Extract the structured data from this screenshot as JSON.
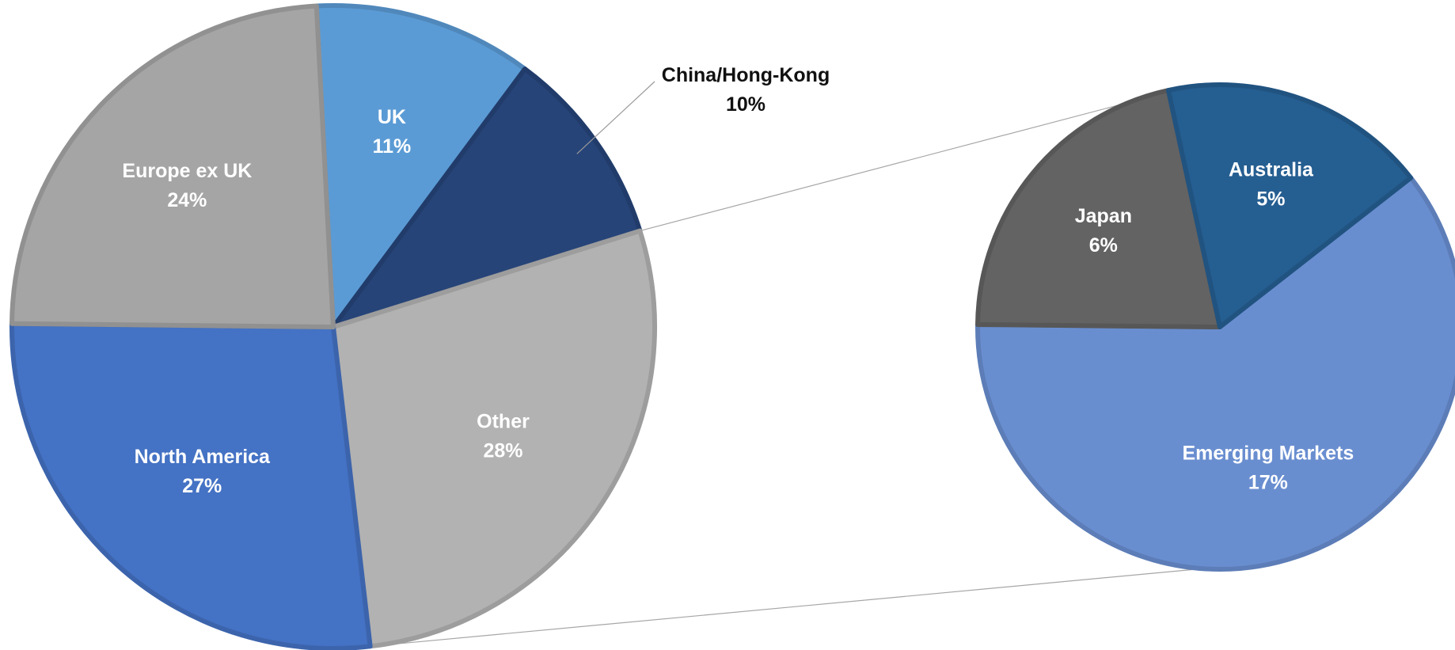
{
  "chart_data": {
    "type": "pie",
    "subtype": "pie-of-pie",
    "title": "",
    "main_pie": {
      "slices": [
        {
          "label": "UK",
          "value": 11,
          "value_label": "11%",
          "color": "#5B9BD5",
          "label_inside": true
        },
        {
          "label": "China/Hong-Kong",
          "value": 10,
          "value_label": "10%",
          "color": "#264478",
          "label_inside": false
        },
        {
          "label": "Other",
          "value": 28,
          "value_label": "28%",
          "color": "#B2B2B2",
          "label_inside": true
        },
        {
          "label": "North America",
          "value": 27,
          "value_label": "27%",
          "color": "#4472C4",
          "label_inside": true
        },
        {
          "label": "Europe ex UK",
          "value": 24,
          "value_label": "24%",
          "color": "#A5A5A5",
          "label_inside": true
        }
      ]
    },
    "secondary_pie": {
      "breakout_of": "Other",
      "slices": [
        {
          "label": "Emerging Markets",
          "value": 17,
          "value_label": "17%",
          "color": "#698ED0",
          "label_inside": true
        },
        {
          "label": "Japan",
          "value": 6,
          "value_label": "6%",
          "color": "#636363",
          "label_inside": true
        },
        {
          "label": "Australia",
          "value": 5,
          "value_label": "5%",
          "color": "#255E91",
          "label_inside": true
        }
      ]
    },
    "legend": "none"
  }
}
